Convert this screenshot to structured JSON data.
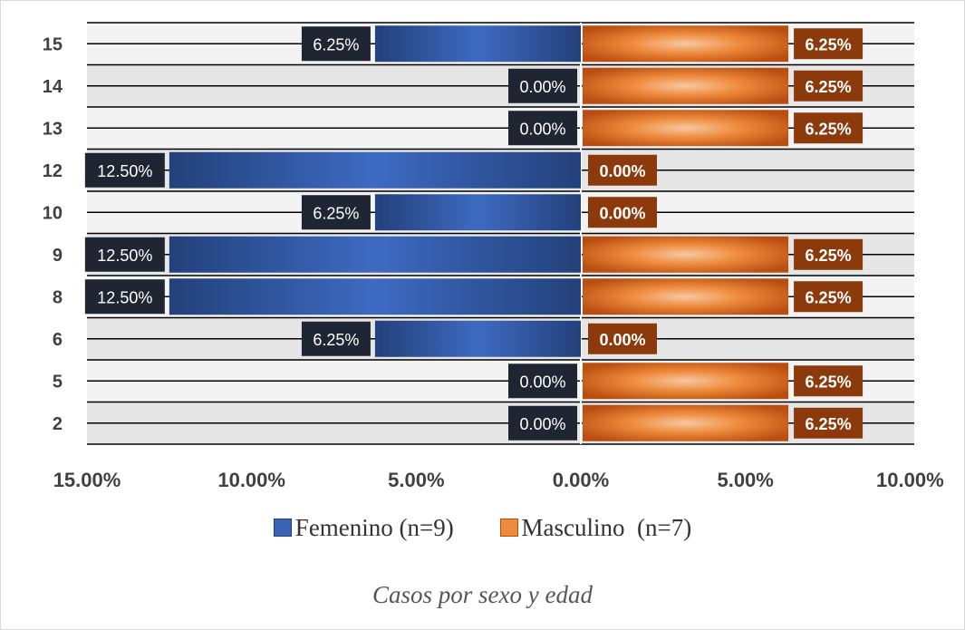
{
  "chart_data": {
    "type": "bar",
    "orientation": "horizontal",
    "layout": "population-pyramid",
    "categories": [
      "15",
      "14",
      "13",
      "12",
      "10",
      "9",
      "8",
      "6",
      "5",
      "2"
    ],
    "series": [
      {
        "name": "Femenino (n=9)",
        "side": "left",
        "color": "#2f5597",
        "values": [
          6.25,
          0.0,
          0.0,
          12.5,
          6.25,
          12.5,
          12.5,
          6.25,
          0.0,
          0.0
        ],
        "labels": [
          "6.25%",
          "0.00%",
          "0.00%",
          "12.50%",
          "6.25%",
          "12.50%",
          "12.50%",
          "6.25%",
          "0.00%",
          "0.00%"
        ]
      },
      {
        "name": "Masculino  (n=7)",
        "side": "right",
        "color": "#c55a11",
        "values": [
          6.25,
          6.25,
          6.25,
          0.0,
          0.0,
          6.25,
          6.25,
          0.0,
          6.25,
          6.25
        ],
        "labels": [
          "6.25%",
          "6.25%",
          "6.25%",
          "0.00%",
          "0.00%",
          "6.25%",
          "6.25%",
          "0.00%",
          "6.25%",
          "6.25%"
        ]
      }
    ],
    "x_tick_labels": [
      "15.00%",
      "10.00%",
      "5.00%",
      "0.00%",
      "5.00%",
      "10.00%"
    ],
    "xlim_left": 15,
    "xlim_right": 10,
    "grid": true,
    "legend_position": "bottom",
    "caption": "Casos por sexo y edad"
  }
}
